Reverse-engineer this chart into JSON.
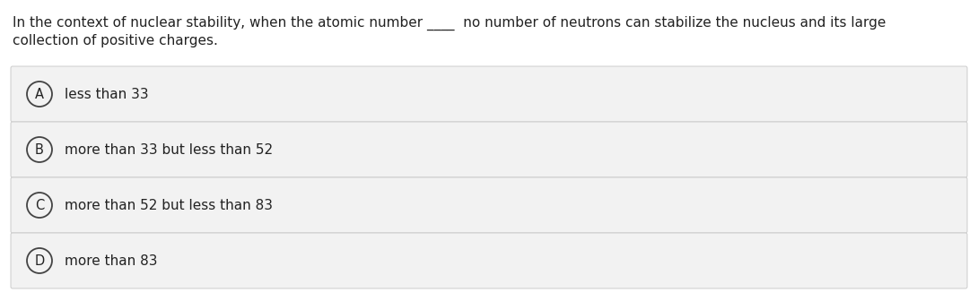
{
  "question_line1": "In the context of nuclear stability, when the atomic number ____  no number of neutrons can stabilize the nucleus and its large",
  "question_line2": "collection of positive charges.",
  "options": [
    {
      "label": "A",
      "text": "less than 33"
    },
    {
      "label": "B",
      "text": "more than 33 but less than 52"
    },
    {
      "label": "C",
      "text": "more than 52 but less than 83"
    },
    {
      "label": "D",
      "text": "more than 83"
    }
  ],
  "bg_color": "#ffffff",
  "option_bg_color": "#f2f2f2",
  "option_border_color": "#cccccc",
  "text_color": "#222222",
  "circle_edge_color": "#444444",
  "question_fontsize": 11.0,
  "option_fontsize": 11.0,
  "label_fontsize": 10.5,
  "fig_width": 10.9,
  "fig_height": 3.36,
  "dpi": 100
}
